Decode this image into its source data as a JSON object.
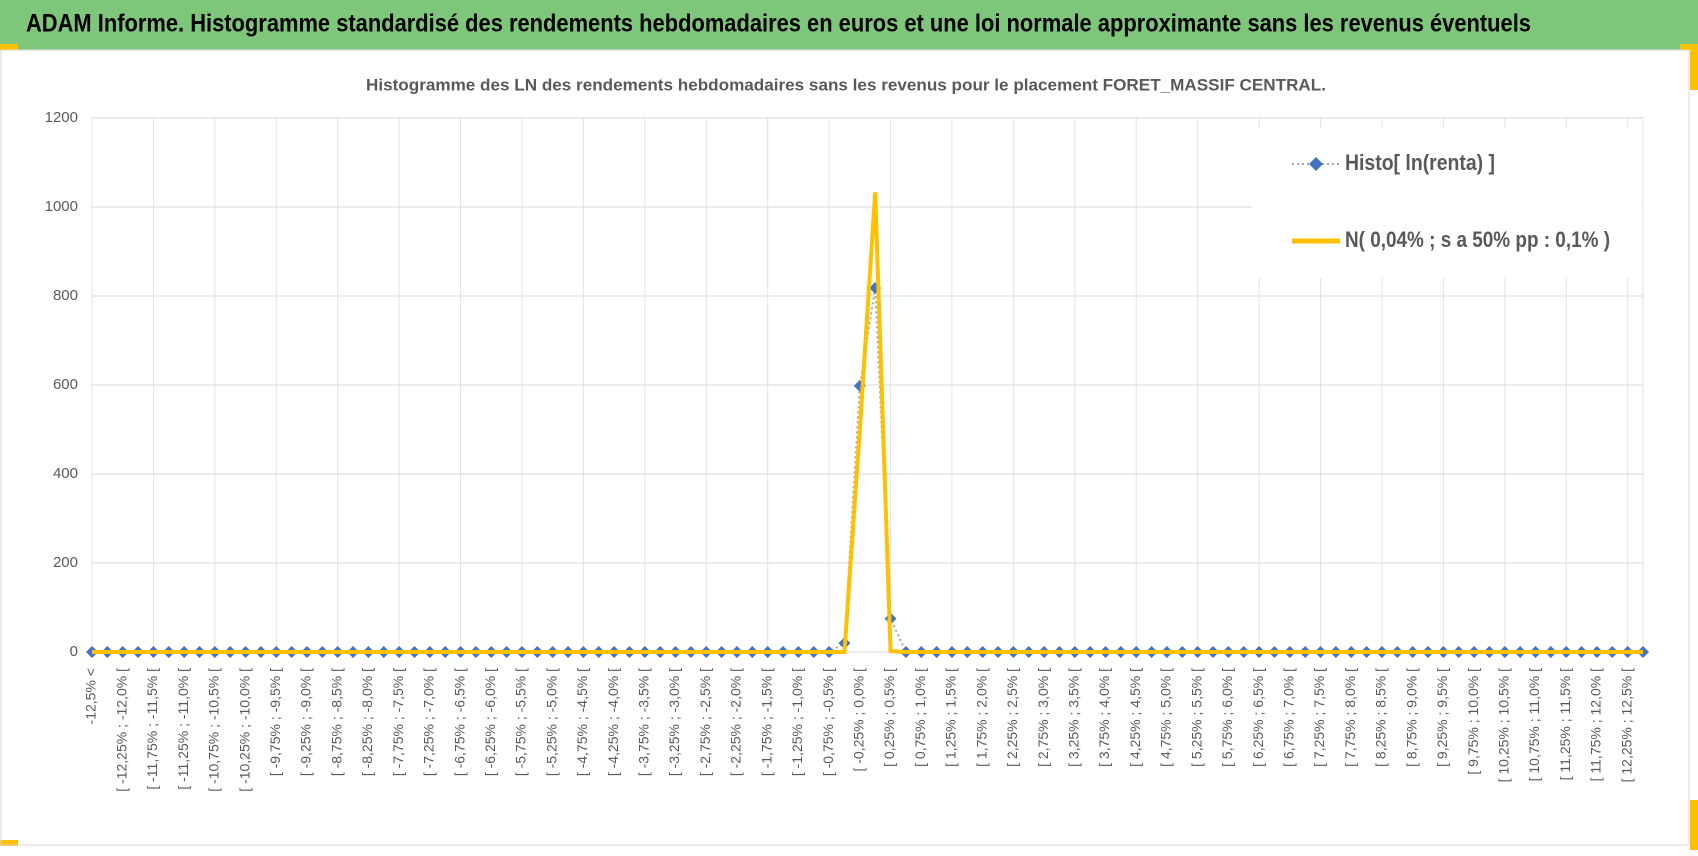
{
  "header": {
    "title": "ADAM Informe. Histogramme standardisé des rendements hebdomadaires en euros et une loi normale approximante sans les revenus éventuels"
  },
  "chart_data": {
    "type": "line",
    "title": "Histogramme  des LN des rendements hebdomadaires sans les revenus pour le placement FORET_MASSIF CENTRAL.",
    "categories": [
      "-12,5% <",
      null,
      "[ -12,25% ; -12,0% [",
      null,
      "[ -11,75% ; -11,5% [",
      null,
      "[ -11,25% ; -11,0% [",
      null,
      "[ -10,75% ; -10,5% [",
      null,
      "[ -10,25% ; -10,0% [",
      null,
      "[ -9,75% ; -9,5% [",
      null,
      "[ -9,25% ; -9,0% [",
      null,
      "[ -8,75% ; -8,5% [",
      null,
      "[ -8,25% ; -8,0% [",
      null,
      "[ -7,75% ; -7,5% [",
      null,
      "[ -7,25% ; -7,0% [",
      null,
      "[ -6,75% ; -6,5% [",
      null,
      "[ -6,25% ; -6,0% [",
      null,
      "[ -5,75% ; -5,5% [",
      null,
      "[ -5,25% ; -5,0% [",
      null,
      "[ -4,75% ; -4,5% [",
      null,
      "[ -4,25% ; -4,0% [",
      null,
      "[ -3,75% ; -3,5% [",
      null,
      "[ -3,25% ; -3,0% [",
      null,
      "[ -2,75% ; -2,5% [",
      null,
      "[ -2,25% ; -2,0% [",
      null,
      "[ -1,75% ; -1,5% [",
      null,
      "[ -1,25% ; -1,0% [",
      null,
      "[ -0,75% ; -0,5% [",
      null,
      "[ -0,25% ; 0,0% [",
      null,
      "[ 0,25% ; 0,5% [",
      null,
      "[ 0,75% ; 1,0% [",
      null,
      "[ 1,25% ; 1,5% [",
      null,
      "[ 1,75% ; 2,0% [",
      null,
      "[ 2,25% ; 2,5% [",
      null,
      "[ 2,75% ; 3,0% [",
      null,
      "[ 3,25% ; 3,5% [",
      null,
      "[ 3,75% ; 4,0% [",
      null,
      "[ 4,25% ; 4,5% [",
      null,
      "[ 4,75% ; 5,0% [",
      null,
      "[ 5,25% ; 5,5% [",
      null,
      "[ 5,75% ; 6,0% [",
      null,
      "[ 6,25% ; 6,5% [",
      null,
      "[ 6,75% ; 7,0% [",
      null,
      "[ 7,25% ; 7,5% [",
      null,
      "[ 7,75% ; 8,0% [",
      null,
      "[ 8,25% ; 8,5% [",
      null,
      "[ 8,75% ; 9,0% [",
      null,
      "[ 9,25% ; 9,5% [",
      null,
      "[ 9,75% ; 10,0% [",
      null,
      "[ 10,25% ; 10,5% [",
      null,
      "[ 10,75% ; 11,0% [",
      null,
      "[ 11,25% ; 11,5% [",
      null,
      "[ 11,75% ; 12,0% [",
      null,
      "[ 12,25% ; 12,5% [",
      null
    ],
    "series": [
      {
        "name": "Histo[ ln(renta) ]",
        "color": "#4472c4",
        "marker": "diamond",
        "dash": "dotted",
        "values": [
          0,
          0,
          0,
          0,
          0,
          0,
          0,
          0,
          0,
          0,
          0,
          0,
          0,
          0,
          0,
          0,
          0,
          0,
          0,
          0,
          0,
          0,
          0,
          0,
          0,
          0,
          0,
          0,
          0,
          0,
          0,
          0,
          0,
          0,
          0,
          0,
          0,
          0,
          0,
          0,
          0,
          0,
          0,
          0,
          0,
          0,
          0,
          0,
          0,
          20,
          598,
          818,
          75,
          0,
          0,
          0,
          0,
          0,
          0,
          0,
          0,
          0,
          0,
          0,
          0,
          0,
          0,
          0,
          0,
          0,
          0,
          0,
          0,
          0,
          0,
          0,
          0,
          0,
          0,
          0,
          0,
          0,
          0,
          0,
          0,
          0,
          0,
          0,
          0,
          0,
          0,
          0,
          0,
          0,
          0,
          0,
          0,
          0,
          0,
          0,
          0,
          0
        ]
      },
      {
        "name": "N( 0,04% ; s a 50% pp : 0,1% )",
        "color": "#ffc000",
        "marker": "none",
        "dash": "solid",
        "values": [
          0,
          0,
          0,
          0,
          0,
          0,
          0,
          0,
          0,
          0,
          0,
          0,
          0,
          0,
          0,
          0,
          0,
          0,
          0,
          0,
          0,
          0,
          0,
          0,
          0,
          0,
          0,
          0,
          0,
          0,
          0,
          0,
          0,
          0,
          0,
          0,
          0,
          0,
          0,
          0,
          0,
          0,
          0,
          0,
          0,
          0,
          0,
          0,
          0,
          0,
          500,
          1033,
          2,
          0,
          0,
          0,
          0,
          0,
          0,
          0,
          0,
          0,
          0,
          0,
          0,
          0,
          0,
          0,
          0,
          0,
          0,
          0,
          0,
          0,
          0,
          0,
          0,
          0,
          0,
          0,
          0,
          0,
          0,
          0,
          0,
          0,
          0,
          0,
          0,
          0,
          0,
          0,
          0,
          0,
          0,
          0,
          0,
          0,
          0,
          0,
          0,
          0
        ]
      }
    ],
    "ylim": [
      0,
      1200
    ],
    "yticks": [
      0,
      200,
      400,
      600,
      800,
      1000,
      1200
    ],
    "grid": true,
    "legend": "top-right"
  }
}
